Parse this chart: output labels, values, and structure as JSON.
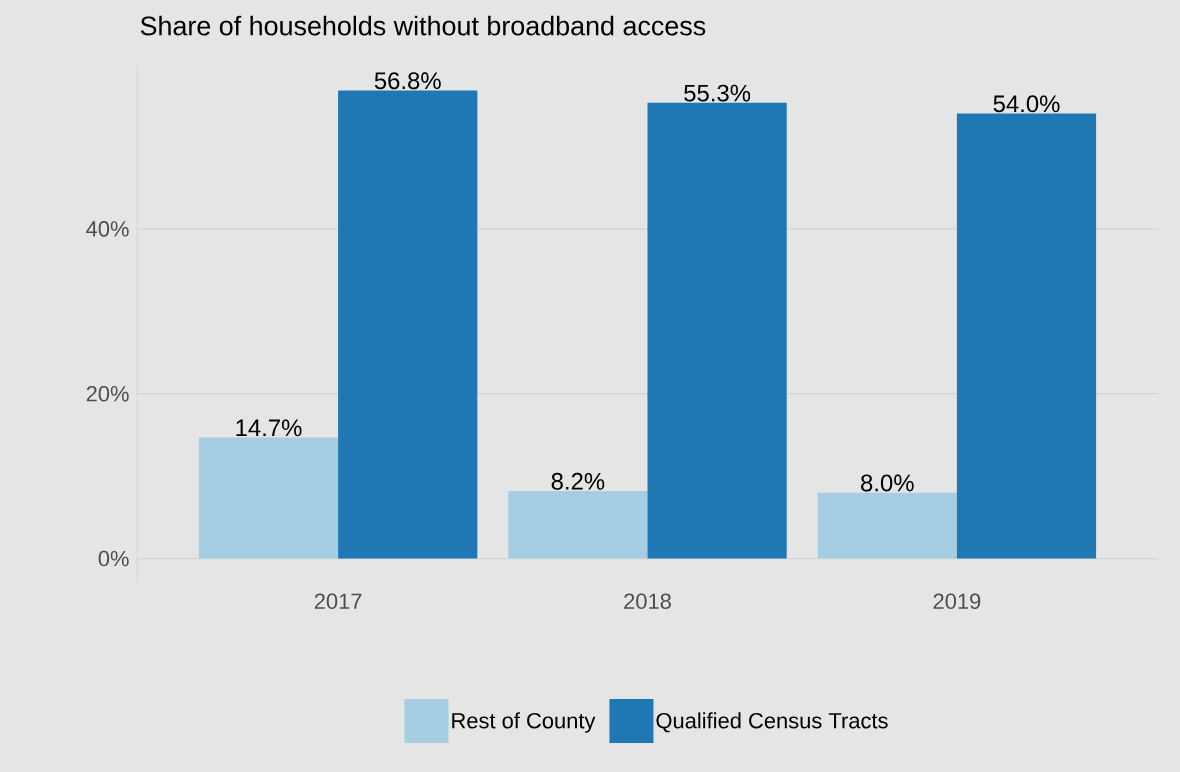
{
  "chart_data": {
    "type": "bar",
    "title": "Share of households without broadband access",
    "categories": [
      "2017",
      "2018",
      "2019"
    ],
    "series": [
      {
        "name": "Rest of County",
        "color": "#a6cee3",
        "values": [
          14.7,
          8.2,
          8.0
        ],
        "value_labels": [
          "14.7%",
          "8.2%",
          "8.0%"
        ]
      },
      {
        "name": "Qualified Census Tracts",
        "color": "#1f78b4",
        "values": [
          56.8,
          55.3,
          54.0
        ],
        "value_labels": [
          "56.8%",
          "55.3%",
          "54.0%"
        ]
      }
    ],
    "ylim": [
      -2.84,
      59.64
    ],
    "yticks": [
      {
        "value": 0,
        "label": "0%"
      },
      {
        "value": 20,
        "label": "20%"
      },
      {
        "value": 40,
        "label": "40%"
      }
    ],
    "grid": "y",
    "legend": "bottom"
  }
}
